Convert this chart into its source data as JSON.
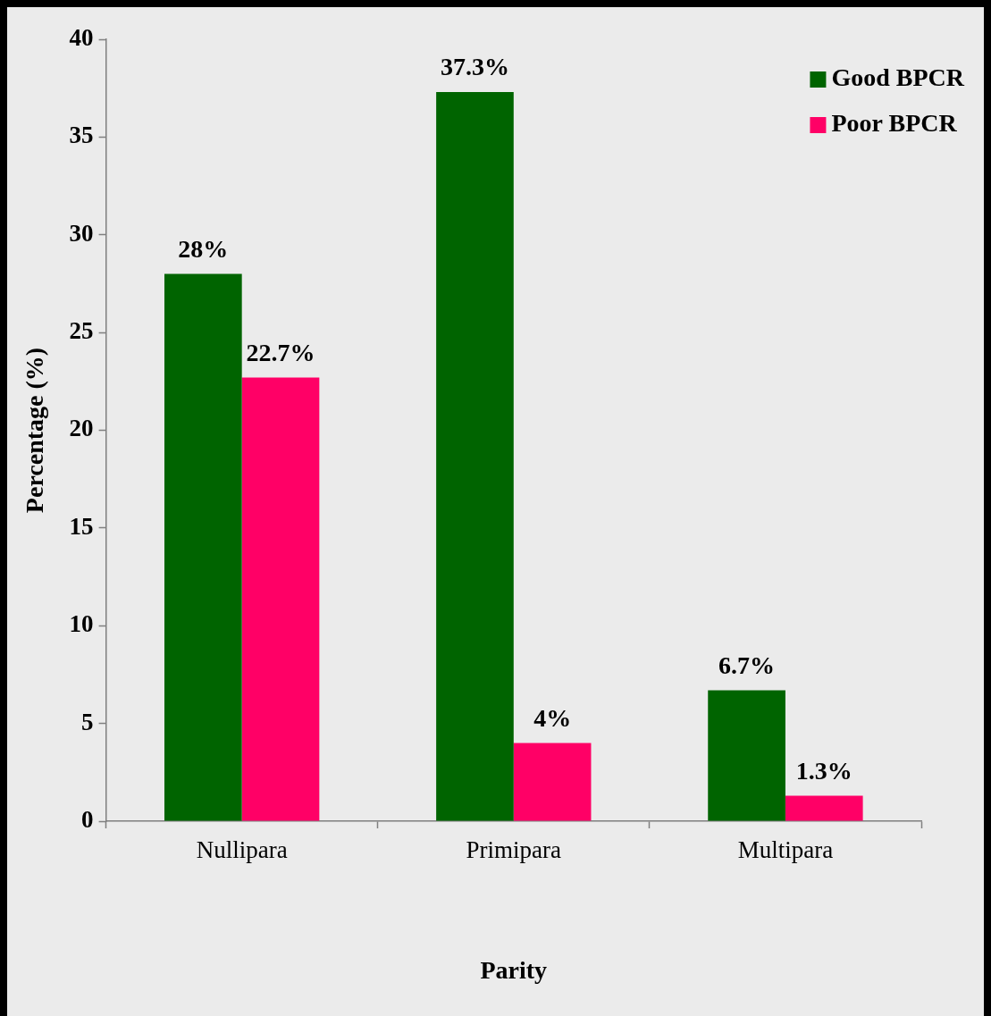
{
  "chart_data": {
    "type": "bar",
    "xlabel": "Parity",
    "ylabel": "Percentage (%)",
    "categories": [
      "Nullipara",
      "Primipara",
      "Multipara"
    ],
    "series": [
      {
        "name": "Good BPCR",
        "color": "#006400",
        "values": [
          28,
          37.3,
          6.7
        ],
        "value_labels": [
          "28%",
          "37.3%",
          "6.7%"
        ]
      },
      {
        "name": "Poor BPCR",
        "color": "#ff0066",
        "values": [
          22.7,
          4,
          1.3
        ],
        "value_labels": [
          "22.7%",
          "4%",
          "1.3%"
        ]
      }
    ],
    "ylim": [
      0,
      40
    ],
    "yticks": [
      0,
      5,
      10,
      15,
      20,
      25,
      30,
      35,
      40
    ],
    "grid": false,
    "legend": "top right"
  }
}
